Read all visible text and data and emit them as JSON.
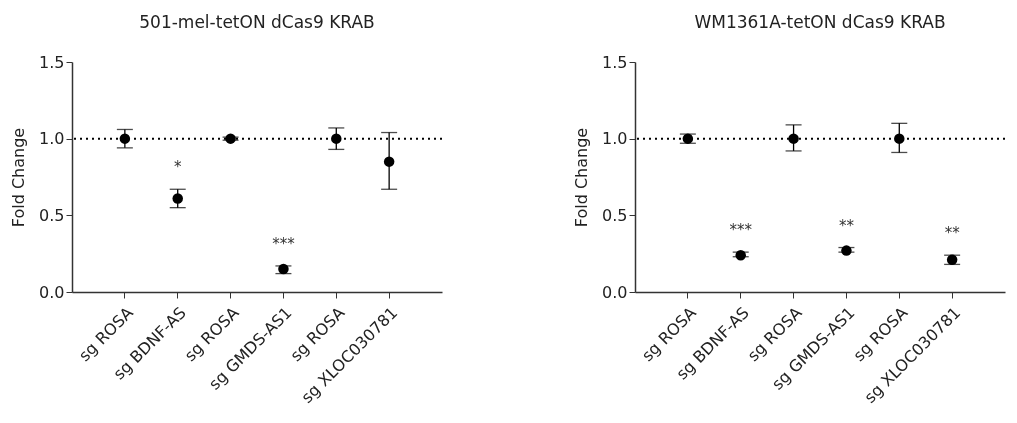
{
  "chart_data": [
    {
      "type": "scatter",
      "title": "501-mel-tetON dCas9 KRAB",
      "ylabel": "Fold Change",
      "categories": [
        "sg ROSA",
        "sg BDNF-AS",
        "sg ROSA",
        "sg GMDS-AS1",
        "sg ROSA",
        "sg XLOC030781"
      ],
      "series": [
        {
          "color": "#000000",
          "values": [
            1.0,
            0.61,
            1.0,
            0.15,
            1.0,
            0.85
          ],
          "errors": [
            [
              0.94,
              1.06
            ],
            [
              0.55,
              0.67
            ],
            [
              0.99,
              1.01
            ],
            [
              0.12,
              0.17
            ],
            [
              0.93,
              1.07
            ],
            [
              0.67,
              1.04
            ]
          ]
        }
      ],
      "ylim": [
        0,
        1.5
      ],
      "yticks": [
        {
          "value": 0,
          "label": "0.0"
        },
        {
          "value": 0.5,
          "label": "0.5"
        },
        {
          "value": 1,
          "label": "1.0"
        },
        {
          "value": 1.5,
          "label": "1.5"
        }
      ],
      "ref_lines": [
        {
          "axis": "y",
          "value": 1,
          "line_style": "dotted",
          "color": "#000000"
        }
      ],
      "annotations": [
        {
          "text": "*",
          "x": "sg BDNF-AS",
          "y": 0.67
        },
        {
          "text": "***",
          "x": "sg GMDS-AS1",
          "y": 0.17
        }
      ],
      "marker": "circle",
      "grid": false
    },
    {
      "type": "scatter",
      "title": "WM1361A-tetON dCas9 KRAB",
      "ylabel": "Fold Change",
      "categories": [
        "sg ROSA",
        "sg BDNF-AS",
        "sg ROSA",
        "sg GMDS-AS1",
        "sg ROSA",
        "sg XLOC030781"
      ],
      "series": [
        {
          "color": "#000000",
          "values": [
            1.0,
            0.24,
            1.0,
            0.27,
            1.0,
            0.21
          ],
          "errors": [
            [
              0.97,
              1.03
            ],
            [
              0.23,
              0.26
            ],
            [
              0.92,
              1.09
            ],
            [
              0.26,
              0.29
            ],
            [
              0.91,
              1.1
            ],
            [
              0.18,
              0.24
            ]
          ]
        }
      ],
      "ylim": [
        0,
        1.5
      ],
      "yticks": [
        {
          "value": 0,
          "label": "0.0"
        },
        {
          "value": 0.5,
          "label": "0.5"
        },
        {
          "value": 1,
          "label": "1.0"
        },
        {
          "value": 1.5,
          "label": "1.5"
        }
      ],
      "ref_lines": [
        {
          "axis": "y",
          "value": 1,
          "line_style": "dotted",
          "color": "#000000"
        }
      ],
      "annotations": [
        {
          "text": "***",
          "x": "sg BDNF-AS",
          "y": 0.26
        },
        {
          "text": "**",
          "x": "sg GMDS-AS1",
          "y": 0.29
        },
        {
          "text": "**",
          "x": "sg XLOC030781",
          "y": 0.24
        }
      ],
      "marker": "circle",
      "grid": false
    }
  ]
}
